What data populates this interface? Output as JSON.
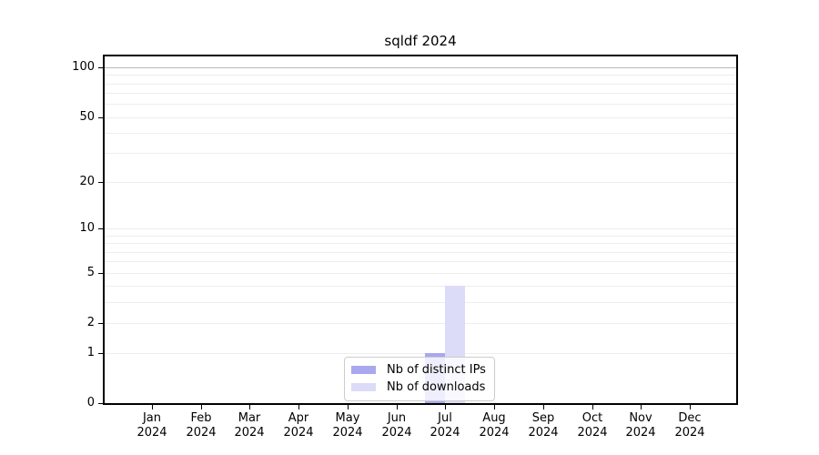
{
  "chart_data": {
    "type": "bar",
    "title": "sqldf 2024",
    "categories": [
      "Jan",
      "Feb",
      "Mar",
      "Apr",
      "May",
      "Jun",
      "Jul",
      "Aug",
      "Sep",
      "Oct",
      "Nov",
      "Dec"
    ],
    "x_year_label": "2024",
    "series": [
      {
        "name": "Nb of distinct IPs",
        "color": "#a8a8f0",
        "values": [
          0,
          0,
          0,
          0,
          0,
          0,
          1,
          0,
          0,
          0,
          0,
          0
        ]
      },
      {
        "name": "Nb of downloads",
        "color": "#dcdcf8",
        "values": [
          0,
          0,
          0,
          0,
          0,
          0,
          4,
          0,
          0,
          0,
          0,
          0
        ]
      }
    ],
    "yscale": "log1p",
    "ytick_labels": [
      100,
      50,
      20,
      10,
      5,
      2,
      1,
      0
    ],
    "gridline_values": [
      1,
      2,
      3,
      4,
      5,
      6,
      7,
      8,
      9,
      10,
      20,
      30,
      40,
      50,
      60,
      70,
      80,
      90,
      100
    ],
    "ylim": [
      0,
      120
    ],
    "xlabel": "",
    "ylabel": "",
    "grid": true,
    "legend_position": "bottom-center"
  }
}
